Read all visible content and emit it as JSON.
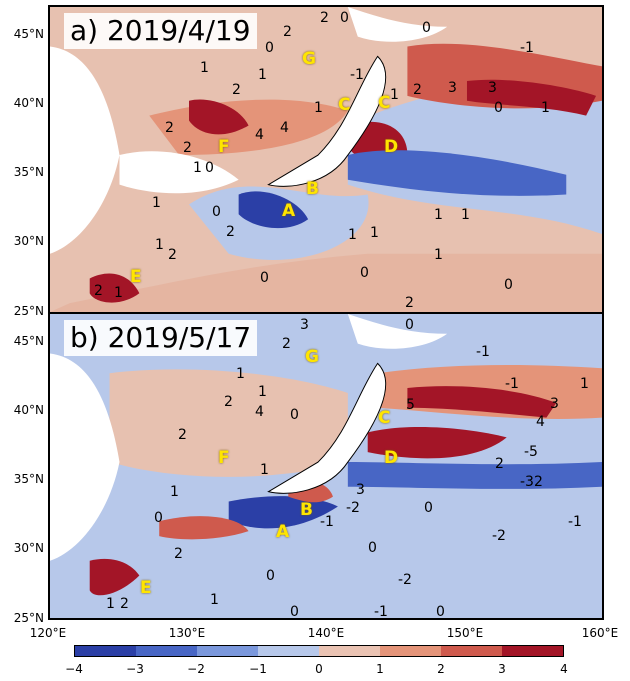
{
  "panels": [
    {
      "title": "a) 2019/4/19",
      "regions": [
        "G",
        "C",
        "C",
        "F",
        "D",
        "B",
        "A",
        "E"
      ],
      "contours": [
        "2",
        "2",
        "0",
        "0",
        "1",
        "2",
        "1",
        "-1",
        "1",
        "2",
        "0",
        "-1",
        "3",
        "3",
        "0",
        "1",
        "4",
        "4",
        "1",
        "2",
        "2",
        "1",
        "0",
        "1",
        "0",
        "2",
        "1",
        "2",
        "1",
        "1",
        "0",
        "1",
        "0",
        "0",
        "1",
        "2",
        "2",
        "1",
        "1"
      ]
    },
    {
      "title": "b) 2019/5/17",
      "regions": [
        "G",
        "C",
        "F",
        "D",
        "B",
        "A",
        "E"
      ],
      "contours": [
        "3",
        "2",
        "0",
        "1",
        "-1",
        "1",
        "2",
        "4",
        "0",
        "-1",
        "1",
        "5",
        "3",
        "4",
        "2",
        "1",
        "-5",
        "2",
        "1",
        "-2",
        "-1",
        "0",
        "3",
        "-3",
        "2",
        "-2",
        "0",
        "-1",
        "-2",
        "0",
        "1",
        "0",
        "2",
        "0",
        "-1",
        "1",
        "2",
        "0"
      ]
    }
  ],
  "axes": {
    "latitude_labels": [
      "45°N",
      "40°N",
      "35°N",
      "30°N",
      "25°N"
    ],
    "longitude_labels": [
      "120°E",
      "130°E",
      "140°E",
      "150°E",
      "160°E"
    ]
  },
  "colorbar": {
    "tick_labels": [
      "−4",
      "−3",
      "−2",
      "−1",
      "0",
      "1",
      "2",
      "3",
      "4"
    ],
    "colors": [
      "#2b3fa6",
      "#4866c5",
      "#7b98dc",
      "#b7c8ea",
      "#eac3b3",
      "#e49479",
      "#cf5a4d",
      "#a31527"
    ]
  }
}
